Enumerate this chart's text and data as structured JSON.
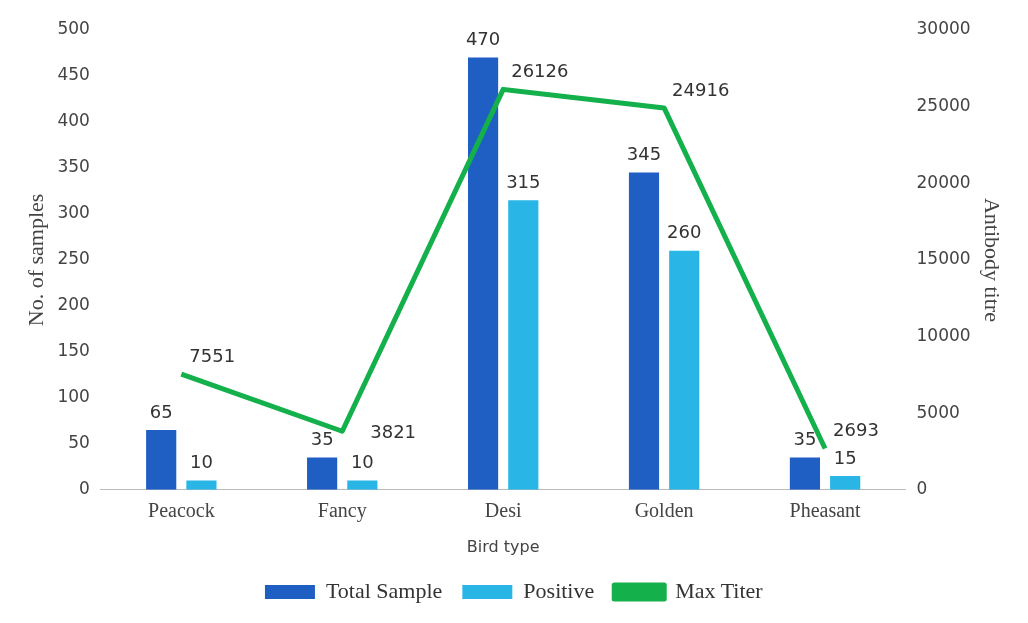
{
  "chart_data": {
    "type": "bar",
    "xlabel": "Bird type",
    "ylabel": "No. of samples",
    "y2label": "Antibody titre",
    "categories": [
      "Peacock",
      "Fancy",
      "Desi",
      "Golden",
      "Pheasant"
    ],
    "series": [
      {
        "name": "Total Sample",
        "color": "#1f5fc4",
        "values": [
          65,
          35,
          470,
          345,
          35
        ]
      },
      {
        "name": "Positive",
        "color": "#29b6e6",
        "values": [
          10,
          10,
          315,
          260,
          15
        ]
      },
      {
        "name": "Max Titer",
        "type": "line",
        "axis": "y2",
        "color": "#13b04b",
        "values": [
          7551,
          3821,
          26126,
          24916,
          2693
        ]
      }
    ],
    "ylim": [
      0,
      500
    ],
    "yticks": [
      0,
      50,
      100,
      150,
      200,
      250,
      300,
      350,
      400,
      450,
      500
    ],
    "y2lim": [
      0,
      30000
    ],
    "y2ticks": [
      0,
      5000,
      10000,
      15000,
      20000,
      25000,
      30000
    ],
    "data_labels": true,
    "legend": "bottom",
    "marker": "none"
  }
}
